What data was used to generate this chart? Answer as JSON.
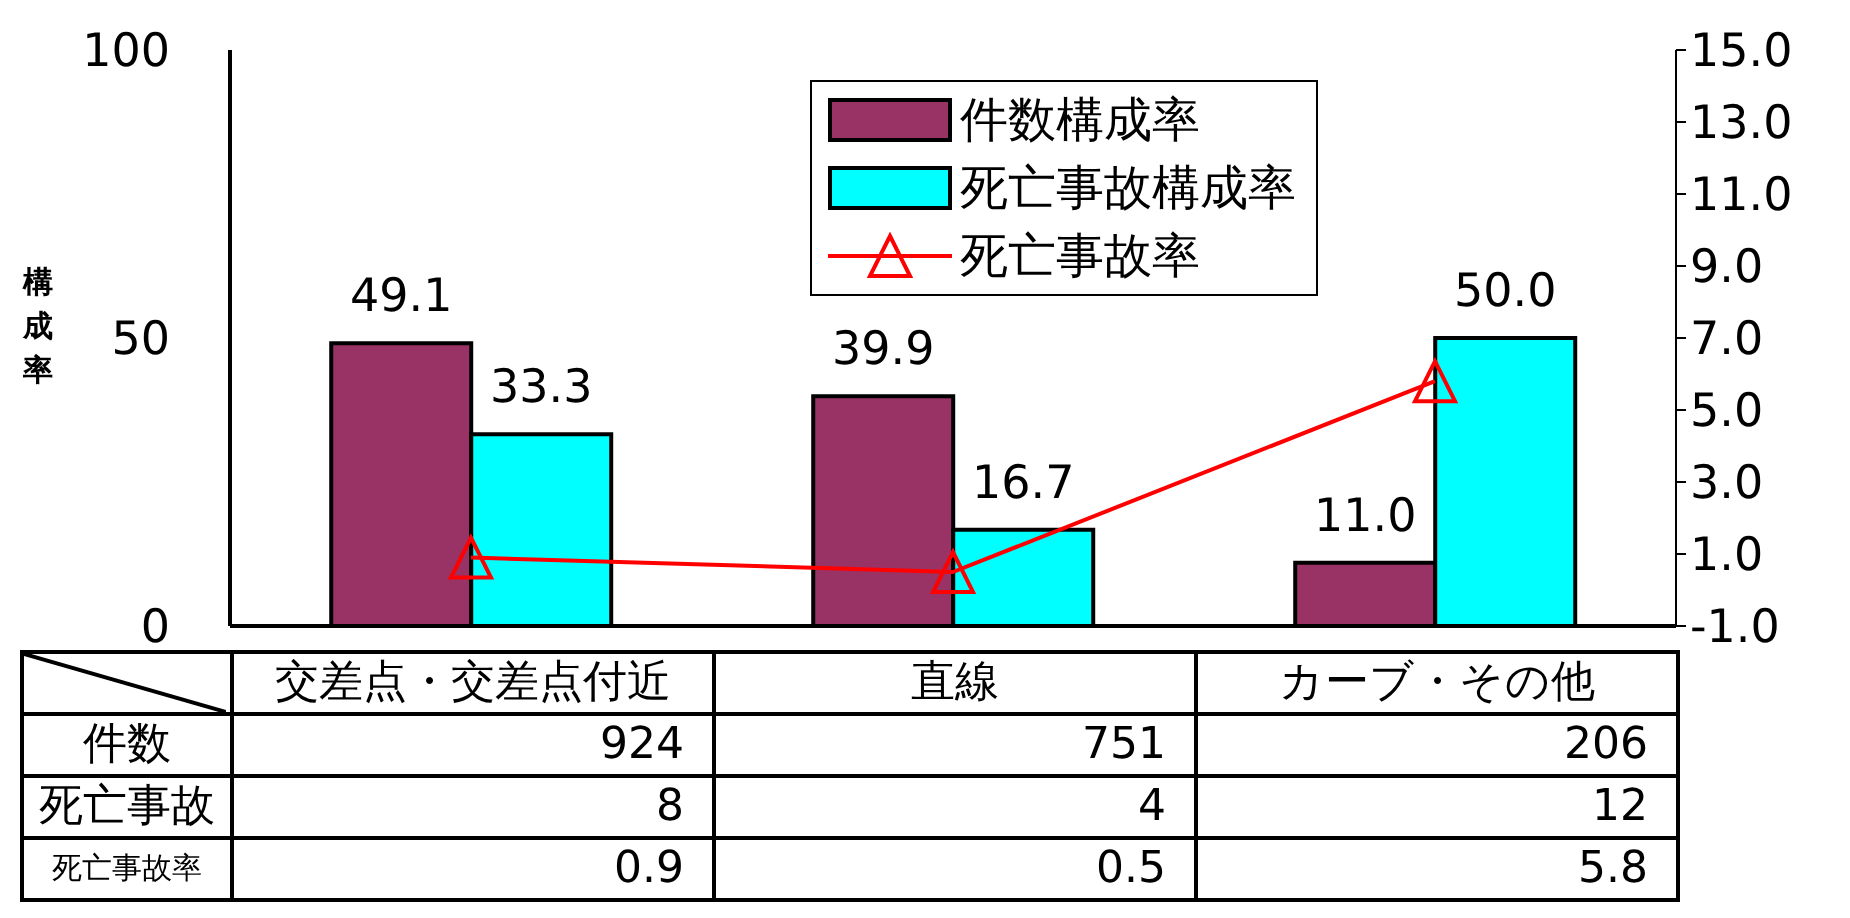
{
  "chart_data": {
    "type": "bar",
    "ylabel": "構成率",
    "categories": [
      "交差点・交差点付近",
      "直線",
      "カーブ・その他"
    ],
    "series": [
      {
        "name": "件数構成率",
        "color": "#993366",
        "values": [
          49.1,
          39.9,
          11.0
        ],
        "value_labels": [
          "49.1",
          "39.9",
          "11.0"
        ]
      },
      {
        "name": "死亡事故構成率",
        "color": "#00ffff",
        "values": [
          33.3,
          16.7,
          50.0
        ],
        "value_labels": [
          "33.3",
          "16.7",
          "50.0"
        ]
      },
      {
        "name": "死亡事故率",
        "type": "line",
        "axis": "y2",
        "color": "#ff0000",
        "marker": "triangle",
        "values": [
          0.9,
          0.5,
          5.8
        ]
      }
    ],
    "ylim": [
      0,
      100
    ],
    "yticks": [
      0,
      50,
      100
    ],
    "y2lim": [
      -1,
      15
    ],
    "y2ticks": [
      {
        "value": -1,
        "label": "-1.0"
      },
      {
        "value": 1,
        "label": "1.0"
      },
      {
        "value": 3,
        "label": "3.0"
      },
      {
        "value": 5,
        "label": "5.0"
      },
      {
        "value": 7,
        "label": "7.0"
      },
      {
        "value": 9,
        "label": "9.0"
      },
      {
        "value": 11,
        "label": "11.0"
      },
      {
        "value": 13,
        "label": "13.0"
      },
      {
        "value": 15,
        "label": "15.0"
      }
    ],
    "annotations": [
      "件数",
      "924",
      "751",
      "206",
      "死亡事故",
      "8",
      "4",
      "12"
    ],
    "data_labels": true,
    "grid": false,
    "legend": "top right"
  }
}
